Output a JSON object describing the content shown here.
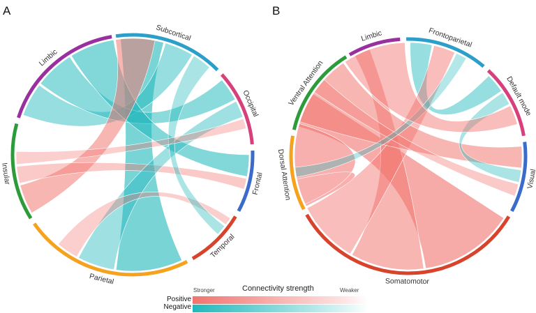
{
  "panels": [
    {
      "label": "A",
      "segments": [
        {
          "name": "Subcortical",
          "color": "#2b9fc9"
        },
        {
          "name": "Occipital",
          "color": "#d6407c"
        },
        {
          "name": "Frontal",
          "color": "#3b6cc9"
        },
        {
          "name": "Temporal",
          "color": "#d8432b"
        },
        {
          "name": "Parietal",
          "color": "#f5a21f"
        },
        {
          "name": "Insular",
          "color": "#2e9b3b"
        },
        {
          "name": "Limbic",
          "color": "#9a2f9f"
        }
      ],
      "links": [
        {
          "source": "Subcortical",
          "target": "Parietal",
          "sign": "negative",
          "strength": 0.9
        },
        {
          "source": "Subcortical",
          "target": "Limbic",
          "sign": "negative",
          "strength": 0.6
        },
        {
          "source": "Limbic",
          "target": "Occipital",
          "sign": "negative",
          "strength": 0.7
        },
        {
          "source": "Limbic",
          "target": "Frontal",
          "sign": "negative",
          "strength": 0.8
        },
        {
          "source": "Limbic",
          "target": "Insular",
          "sign": "positive",
          "strength": 0.7
        },
        {
          "source": "Insular",
          "target": "Frontal",
          "sign": "positive",
          "strength": 0.4
        },
        {
          "source": "Parietal",
          "target": "Occipital",
          "sign": "negative",
          "strength": 0.5
        },
        {
          "source": "Parietal",
          "target": "Temporal",
          "sign": "positive",
          "strength": 0.3
        },
        {
          "source": "Subcortical",
          "target": "Temporal",
          "sign": "negative",
          "strength": 0.4
        },
        {
          "source": "Insular",
          "target": "Occipital",
          "sign": "positive",
          "strength": 0.3
        }
      ]
    },
    {
      "label": "B",
      "segments": [
        {
          "name": "Limbic",
          "color": "#9a2f9f"
        },
        {
          "name": "Frontoparietal",
          "color": "#2b9fc9"
        },
        {
          "name": "Default mode",
          "color": "#d6407c"
        },
        {
          "name": "Visual",
          "color": "#3b6cc9"
        },
        {
          "name": "Somatomotor",
          "color": "#d8432b"
        },
        {
          "name": "Dorsal Attention",
          "color": "#f5a21f"
        },
        {
          "name": "Ventral Attention",
          "color": "#2e9b3b"
        }
      ],
      "links": [
        {
          "source": "Ventral Attention",
          "target": "Somatomotor",
          "sign": "positive",
          "strength": 0.9
        },
        {
          "source": "Limbic",
          "target": "Somatomotor",
          "sign": "positive",
          "strength": 0.7
        },
        {
          "source": "Frontoparietal",
          "target": "Default mode",
          "sign": "negative",
          "strength": 0.6
        },
        {
          "source": "Frontoparietal",
          "target": "Somatomotor",
          "sign": "positive",
          "strength": 0.6
        },
        {
          "source": "Dorsal Attention",
          "target": "Somatomotor",
          "sign": "positive",
          "strength": 0.8
        },
        {
          "source": "Visual",
          "target": "Somatomotor",
          "sign": "positive",
          "strength": 0.7
        },
        {
          "source": "Visual",
          "target": "Default mode",
          "sign": "negative",
          "strength": 0.4
        },
        {
          "source": "Ventral Attention",
          "target": "Visual",
          "sign": "positive",
          "strength": 0.4
        },
        {
          "source": "Dorsal Attention",
          "target": "Frontoparietal",
          "sign": "negative",
          "strength": 0.3
        },
        {
          "source": "Default mode",
          "target": "Somatomotor",
          "sign": "positive",
          "strength": 0.6
        }
      ]
    }
  ],
  "legend": {
    "title": "Connectivity strength",
    "stronger": "Stronger",
    "weaker": "Weaker",
    "positive": "Positive",
    "negative": "Negative",
    "positive_color": "#f2736e",
    "negative_color": "#20b8bb"
  }
}
